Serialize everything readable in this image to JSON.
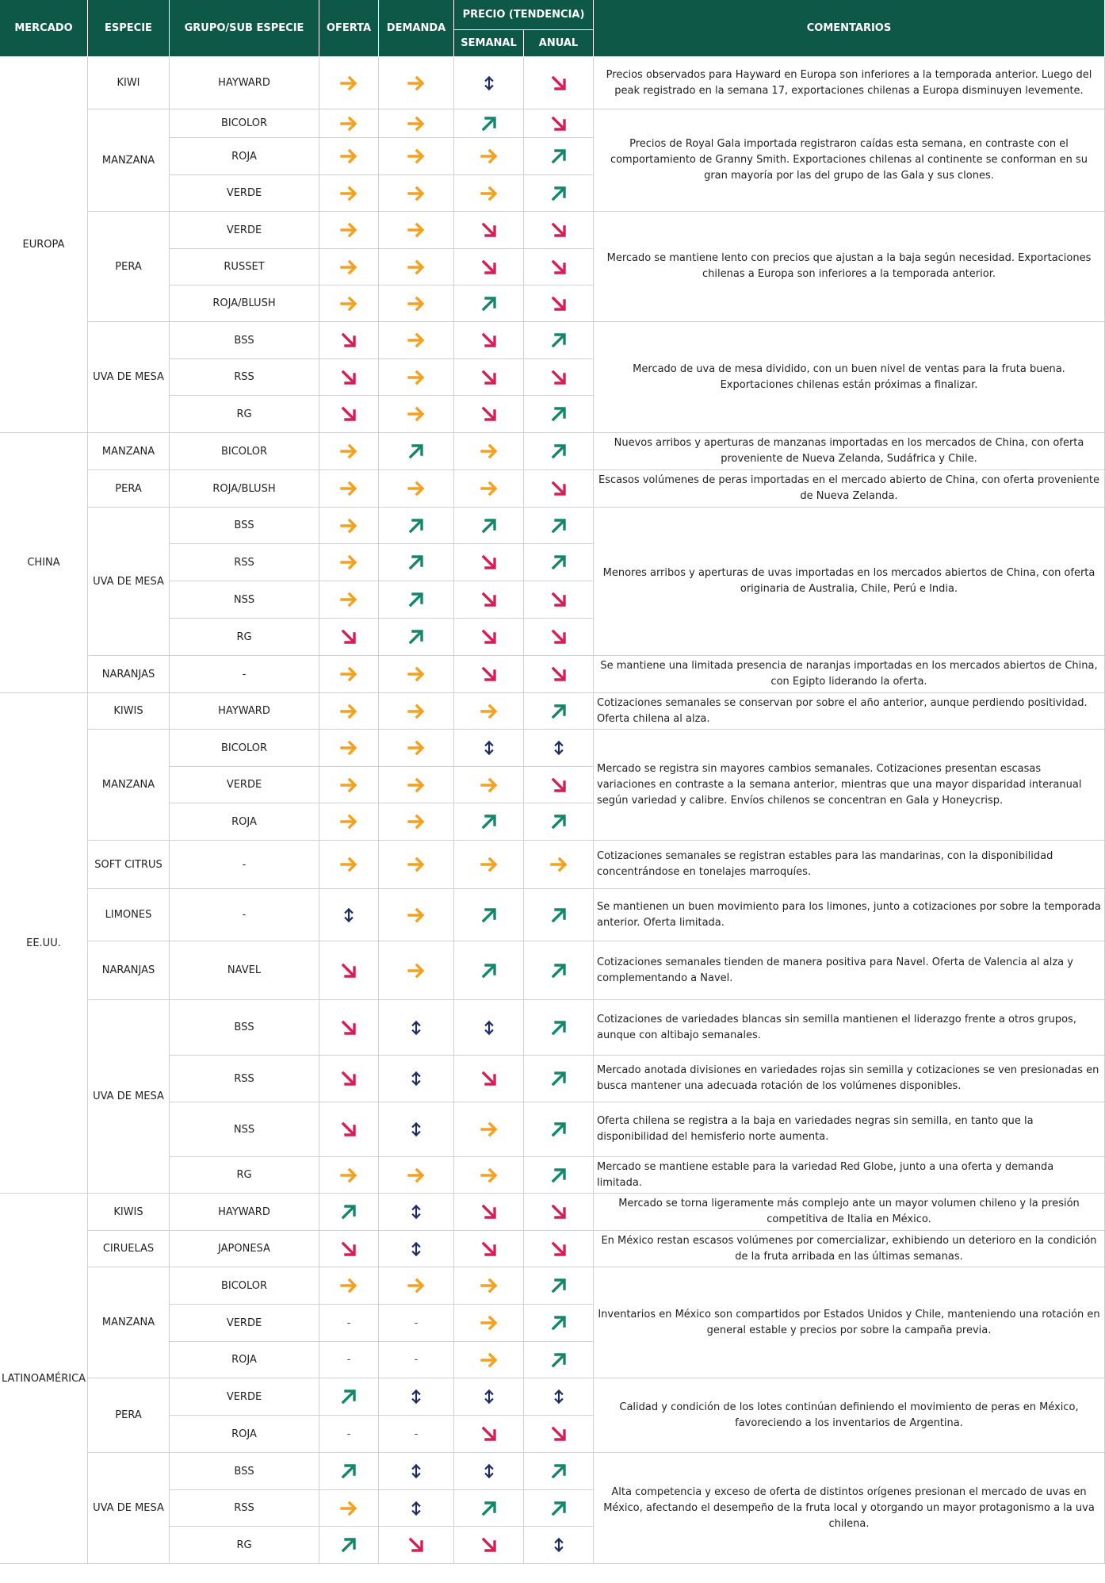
{
  "colors": {
    "header_bg": "#0e5848",
    "arrow_orange": "#f5a01e",
    "arrow_green": "#14876a",
    "arrow_red": "#d81d55",
    "arrow_navy": "#1b2b69"
  },
  "headers": {
    "mercado": "MERCADO",
    "especie": "ESPECIE",
    "grupo": "GRUPO/SUB ESPECIE",
    "oferta": "OFERTA",
    "demanda": "DEMANDA",
    "precio": "PRECIO (TENDENCIA)",
    "semanal": "SEMANAL",
    "anual": "ANUAL",
    "comentarios": "COMENTARIOS"
  },
  "icon_legend": {
    "right": "arrow-right-icon",
    "up": "arrow-up-right-icon",
    "down": "arrow-down-right-icon",
    "updown": "arrow-up-down-icon",
    "-": "dash"
  },
  "markets": [
    {
      "name": "EUROPA",
      "species": [
        {
          "name": "KIWI",
          "rows": [
            {
              "grupo": "HAYWARD",
              "oferta": "right",
              "demanda": "right",
              "semanal": "updown",
              "anual": "down"
            }
          ],
          "comments": [
            {
              "span": 1,
              "align": "center",
              "text": "Precios observados para Hayward en Europa son inferiores a la temporada anterior. Luego del peak registrado en la semana 17, exportaciones chilenas a Europa disminuyen levemente."
            }
          ]
        },
        {
          "name": "MANZANA",
          "rows": [
            {
              "grupo": "BICOLOR",
              "oferta": "right",
              "demanda": "right",
              "semanal": "up",
              "anual": "down"
            },
            {
              "grupo": "ROJA",
              "oferta": "right",
              "demanda": "right",
              "semanal": "right",
              "anual": "up"
            },
            {
              "grupo": "VERDE",
              "oferta": "right",
              "demanda": "right",
              "semanal": "right",
              "anual": "up"
            }
          ],
          "comments": [
            {
              "span": 3,
              "align": "center",
              "text": "Precios de Royal Gala importada registraron caídas esta semana, en contraste con el comportamiento de Granny Smith. Exportaciones chilenas al continente se conforman en su gran mayoría por las del grupo de las Gala y sus clones."
            }
          ]
        },
        {
          "name": "PERA",
          "rows": [
            {
              "grupo": "VERDE",
              "oferta": "right",
              "demanda": "right",
              "semanal": "down",
              "anual": "down"
            },
            {
              "grupo": "RUSSET",
              "oferta": "right",
              "demanda": "right",
              "semanal": "down",
              "anual": "down"
            },
            {
              "grupo": "ROJA/BLUSH",
              "oferta": "right",
              "demanda": "right",
              "semanal": "up",
              "anual": "down"
            }
          ],
          "comments": [
            {
              "span": 3,
              "align": "center",
              "text": "Mercado se mantiene lento con precios que ajustan a la baja según necesidad. Exportaciones chilenas a Europa son inferiores a la temporada anterior."
            }
          ]
        },
        {
          "name": "UVA DE MESA",
          "rows": [
            {
              "grupo": "BSS",
              "oferta": "down",
              "demanda": "right",
              "semanal": "down",
              "anual": "up"
            },
            {
              "grupo": "RSS",
              "oferta": "down",
              "demanda": "right",
              "semanal": "down",
              "anual": "down"
            },
            {
              "grupo": "RG",
              "oferta": "down",
              "demanda": "right",
              "semanal": "down",
              "anual": "up"
            }
          ],
          "comments": [
            {
              "span": 3,
              "align": "center",
              "text": "Mercado de uva de mesa dividido, con un buen nivel de ventas para la fruta buena. Exportaciones chilenas están próximas a finalizar."
            }
          ]
        }
      ]
    },
    {
      "name": "CHINA",
      "species": [
        {
          "name": "MANZANA",
          "rows": [
            {
              "grupo": "BICOLOR",
              "oferta": "right",
              "demanda": "up",
              "semanal": "right",
              "anual": "up"
            }
          ],
          "comments": [
            {
              "span": 1,
              "align": "center",
              "text": "Nuevos arribos y aperturas de manzanas importadas en los mercados de China, con oferta proveniente de Nueva Zelanda, Sudáfrica y Chile."
            }
          ]
        },
        {
          "name": "PERA",
          "rows": [
            {
              "grupo": "ROJA/BLUSH",
              "oferta": "right",
              "demanda": "right",
              "semanal": "right",
              "anual": "down"
            }
          ],
          "comments": [
            {
              "span": 1,
              "align": "center",
              "text": "Escasos volúmenes de peras importadas en el mercado abierto de China, con oferta proveniente de Nueva Zelanda."
            }
          ]
        },
        {
          "name": "UVA DE MESA",
          "rows": [
            {
              "grupo": "BSS",
              "oferta": "right",
              "demanda": "up",
              "semanal": "up",
              "anual": "up"
            },
            {
              "grupo": "RSS",
              "oferta": "right",
              "demanda": "up",
              "semanal": "down",
              "anual": "up"
            },
            {
              "grupo": "NSS",
              "oferta": "right",
              "demanda": "up",
              "semanal": "down",
              "anual": "down"
            },
            {
              "grupo": "RG",
              "oferta": "down",
              "demanda": "up",
              "semanal": "down",
              "anual": "down"
            }
          ],
          "comments": [
            {
              "span": 4,
              "align": "center",
              "text": "Menores arribos y aperturas de uvas importadas en los mercados abiertos de China, con oferta originaria de Australia, Chile, Perú e India."
            }
          ]
        },
        {
          "name": "NARANJAS",
          "rows": [
            {
              "grupo": "-",
              "oferta": "right",
              "demanda": "right",
              "semanal": "down",
              "anual": "down"
            }
          ],
          "comments": [
            {
              "span": 1,
              "align": "center",
              "text": "Se mantiene una limitada presencia de naranjas importadas en los mercados abiertos de China, con Egipto liderando la oferta."
            }
          ]
        }
      ]
    },
    {
      "name": "EE.UU.",
      "species": [
        {
          "name": "KIWIS",
          "rows": [
            {
              "grupo": "HAYWARD",
              "oferta": "right",
              "demanda": "right",
              "semanal": "right",
              "anual": "up"
            }
          ],
          "comments": [
            {
              "span": 1,
              "align": "left",
              "text": "Cotizaciones semanales se conservan por sobre el año anterior, aunque perdiendo positividad. Oferta chilena al alza."
            }
          ]
        },
        {
          "name": "MANZANA",
          "rows": [
            {
              "grupo": "BICOLOR",
              "oferta": "right",
              "demanda": "right",
              "semanal": "updown",
              "anual": "updown"
            },
            {
              "grupo": "VERDE",
              "oferta": "right",
              "demanda": "right",
              "semanal": "right",
              "anual": "down"
            },
            {
              "grupo": "ROJA",
              "oferta": "right",
              "demanda": "right",
              "semanal": "up",
              "anual": "up"
            }
          ],
          "comments": [
            {
              "span": 3,
              "align": "left",
              "text": "Mercado se registra sin mayores cambios semanales. Cotizaciones presentan escasas variaciones en contraste a la semana anterior, mientras que una mayor disparidad interanual según variedad y calibre. Envíos chilenos se concentran en Gala y Honeycrisp."
            }
          ]
        },
        {
          "name": "SOFT CITRUS",
          "rows": [
            {
              "grupo": "-",
              "oferta": "right",
              "demanda": "right",
              "semanal": "right",
              "anual": "right"
            }
          ],
          "comments": [
            {
              "span": 1,
              "align": "left",
              "text": "Cotizaciones semanales se registran estables para las mandarinas, con la disponibilidad concentrándose en tonelajes marroquíes."
            }
          ]
        },
        {
          "name": "LIMONES",
          "rows": [
            {
              "grupo": "-",
              "oferta": "updown",
              "demanda": "right",
              "semanal": "up",
              "anual": "up"
            }
          ],
          "comments": [
            {
              "span": 1,
              "align": "left",
              "text": "Se mantienen un buen movimiento para los limones, junto a cotizaciones por sobre la temporada anterior. Oferta limitada."
            }
          ]
        },
        {
          "name": "NARANJAS",
          "rows": [
            {
              "grupo": "NAVEL",
              "oferta": "down",
              "demanda": "right",
              "semanal": "up",
              "anual": "up"
            }
          ],
          "comments": [
            {
              "span": 1,
              "align": "left",
              "text": "Cotizaciones semanales tienden de manera positiva para Navel. Oferta de Valencia al alza y complementando a Navel."
            }
          ]
        },
        {
          "name": "UVA DE MESA",
          "rows": [
            {
              "grupo": "BSS",
              "oferta": "down",
              "demanda": "updown",
              "semanal": "updown",
              "anual": "up"
            },
            {
              "grupo": "RSS",
              "oferta": "down",
              "demanda": "updown",
              "semanal": "down",
              "anual": "up"
            },
            {
              "grupo": "NSS",
              "oferta": "down",
              "demanda": "updown",
              "semanal": "right",
              "anual": "up"
            },
            {
              "grupo": "RG",
              "oferta": "right",
              "demanda": "right",
              "semanal": "right",
              "anual": "up"
            }
          ],
          "comments": [
            {
              "span": 1,
              "align": "left",
              "text": "Cotizaciones de variedades blancas sin semilla mantienen el liderazgo frente a otros grupos, aunque con altibajo semanales."
            },
            {
              "span": 1,
              "align": "left",
              "text": "Mercado anotada divisiones en variedades rojas sin semilla y cotizaciones se ven presionadas en busca mantener una adecuada rotación de los volúmenes disponibles."
            },
            {
              "span": 1,
              "align": "left",
              "text": "Oferta chilena se registra a la baja en variedades negras sin semilla, en tanto que la disponibilidad del hemisferio norte aumenta."
            },
            {
              "span": 1,
              "align": "left",
              "text": "Mercado se mantiene estable para la variedad Red Globe, junto a una oferta y demanda limitada."
            }
          ]
        }
      ]
    },
    {
      "name": "LATINOAMÉRICA",
      "species": [
        {
          "name": "KIWIS",
          "rows": [
            {
              "grupo": "HAYWARD",
              "oferta": "up",
              "demanda": "updown",
              "semanal": "down",
              "anual": "down"
            }
          ],
          "comments": [
            {
              "span": 1,
              "align": "center",
              "text": "Mercado se torna ligeramente más complejo ante un mayor volumen chileno y la presión competitiva de Italia en México."
            }
          ]
        },
        {
          "name": "CIRUELAS",
          "rows": [
            {
              "grupo": "JAPONESA",
              "oferta": "down",
              "demanda": "updown",
              "semanal": "down",
              "anual": "down"
            }
          ],
          "comments": [
            {
              "span": 1,
              "align": "center",
              "text": "En México restan escasos volúmenes por comercializar, exhibiendo un deterioro en la condición de la fruta arribada en las últimas semanas."
            }
          ]
        },
        {
          "name": "MANZANA",
          "rows": [
            {
              "grupo": "BICOLOR",
              "oferta": "right",
              "demanda": "right",
              "semanal": "right",
              "anual": "up"
            },
            {
              "grupo": "VERDE",
              "oferta": "-",
              "demanda": "-",
              "semanal": "right",
              "anual": "up"
            },
            {
              "grupo": "ROJA",
              "oferta": "-",
              "demanda": "-",
              "semanal": "right",
              "anual": "up"
            }
          ],
          "comments": [
            {
              "span": 3,
              "align": "center",
              "text": "Inventarios en México son compartidos por Estados Unidos y Chile, manteniendo una rotación en general estable y precios por sobre la campaña previa."
            }
          ]
        },
        {
          "name": "PERA",
          "rows": [
            {
              "grupo": "VERDE",
              "oferta": "up",
              "demanda": "updown",
              "semanal": "updown",
              "anual": "updown"
            },
            {
              "grupo": "ROJA",
              "oferta": "-",
              "demanda": "-",
              "semanal": "down",
              "anual": "down"
            }
          ],
          "comments": [
            {
              "span": 2,
              "align": "center",
              "text": "Calidad y condición de los lotes continúan definiendo el movimiento de peras en México, favoreciendo a los inventarios de Argentina."
            }
          ]
        },
        {
          "name": "UVA DE MESA",
          "rows": [
            {
              "grupo": "BSS",
              "oferta": "up",
              "demanda": "updown",
              "semanal": "updown",
              "anual": "up"
            },
            {
              "grupo": "RSS",
              "oferta": "right",
              "demanda": "updown",
              "semanal": "up",
              "anual": "up"
            },
            {
              "grupo": "RG",
              "oferta": "up",
              "demanda": "down",
              "semanal": "down",
              "anual": "updown"
            }
          ],
          "comments": [
            {
              "span": 3,
              "align": "center",
              "text": "Alta competencia y exceso de oferta de distintos orígenes presionan el mercado de uvas en México, afectando el desempeño de la fruta local y otorgando un mayor protagonismo a la uva chilena."
            }
          ]
        }
      ]
    }
  ]
}
